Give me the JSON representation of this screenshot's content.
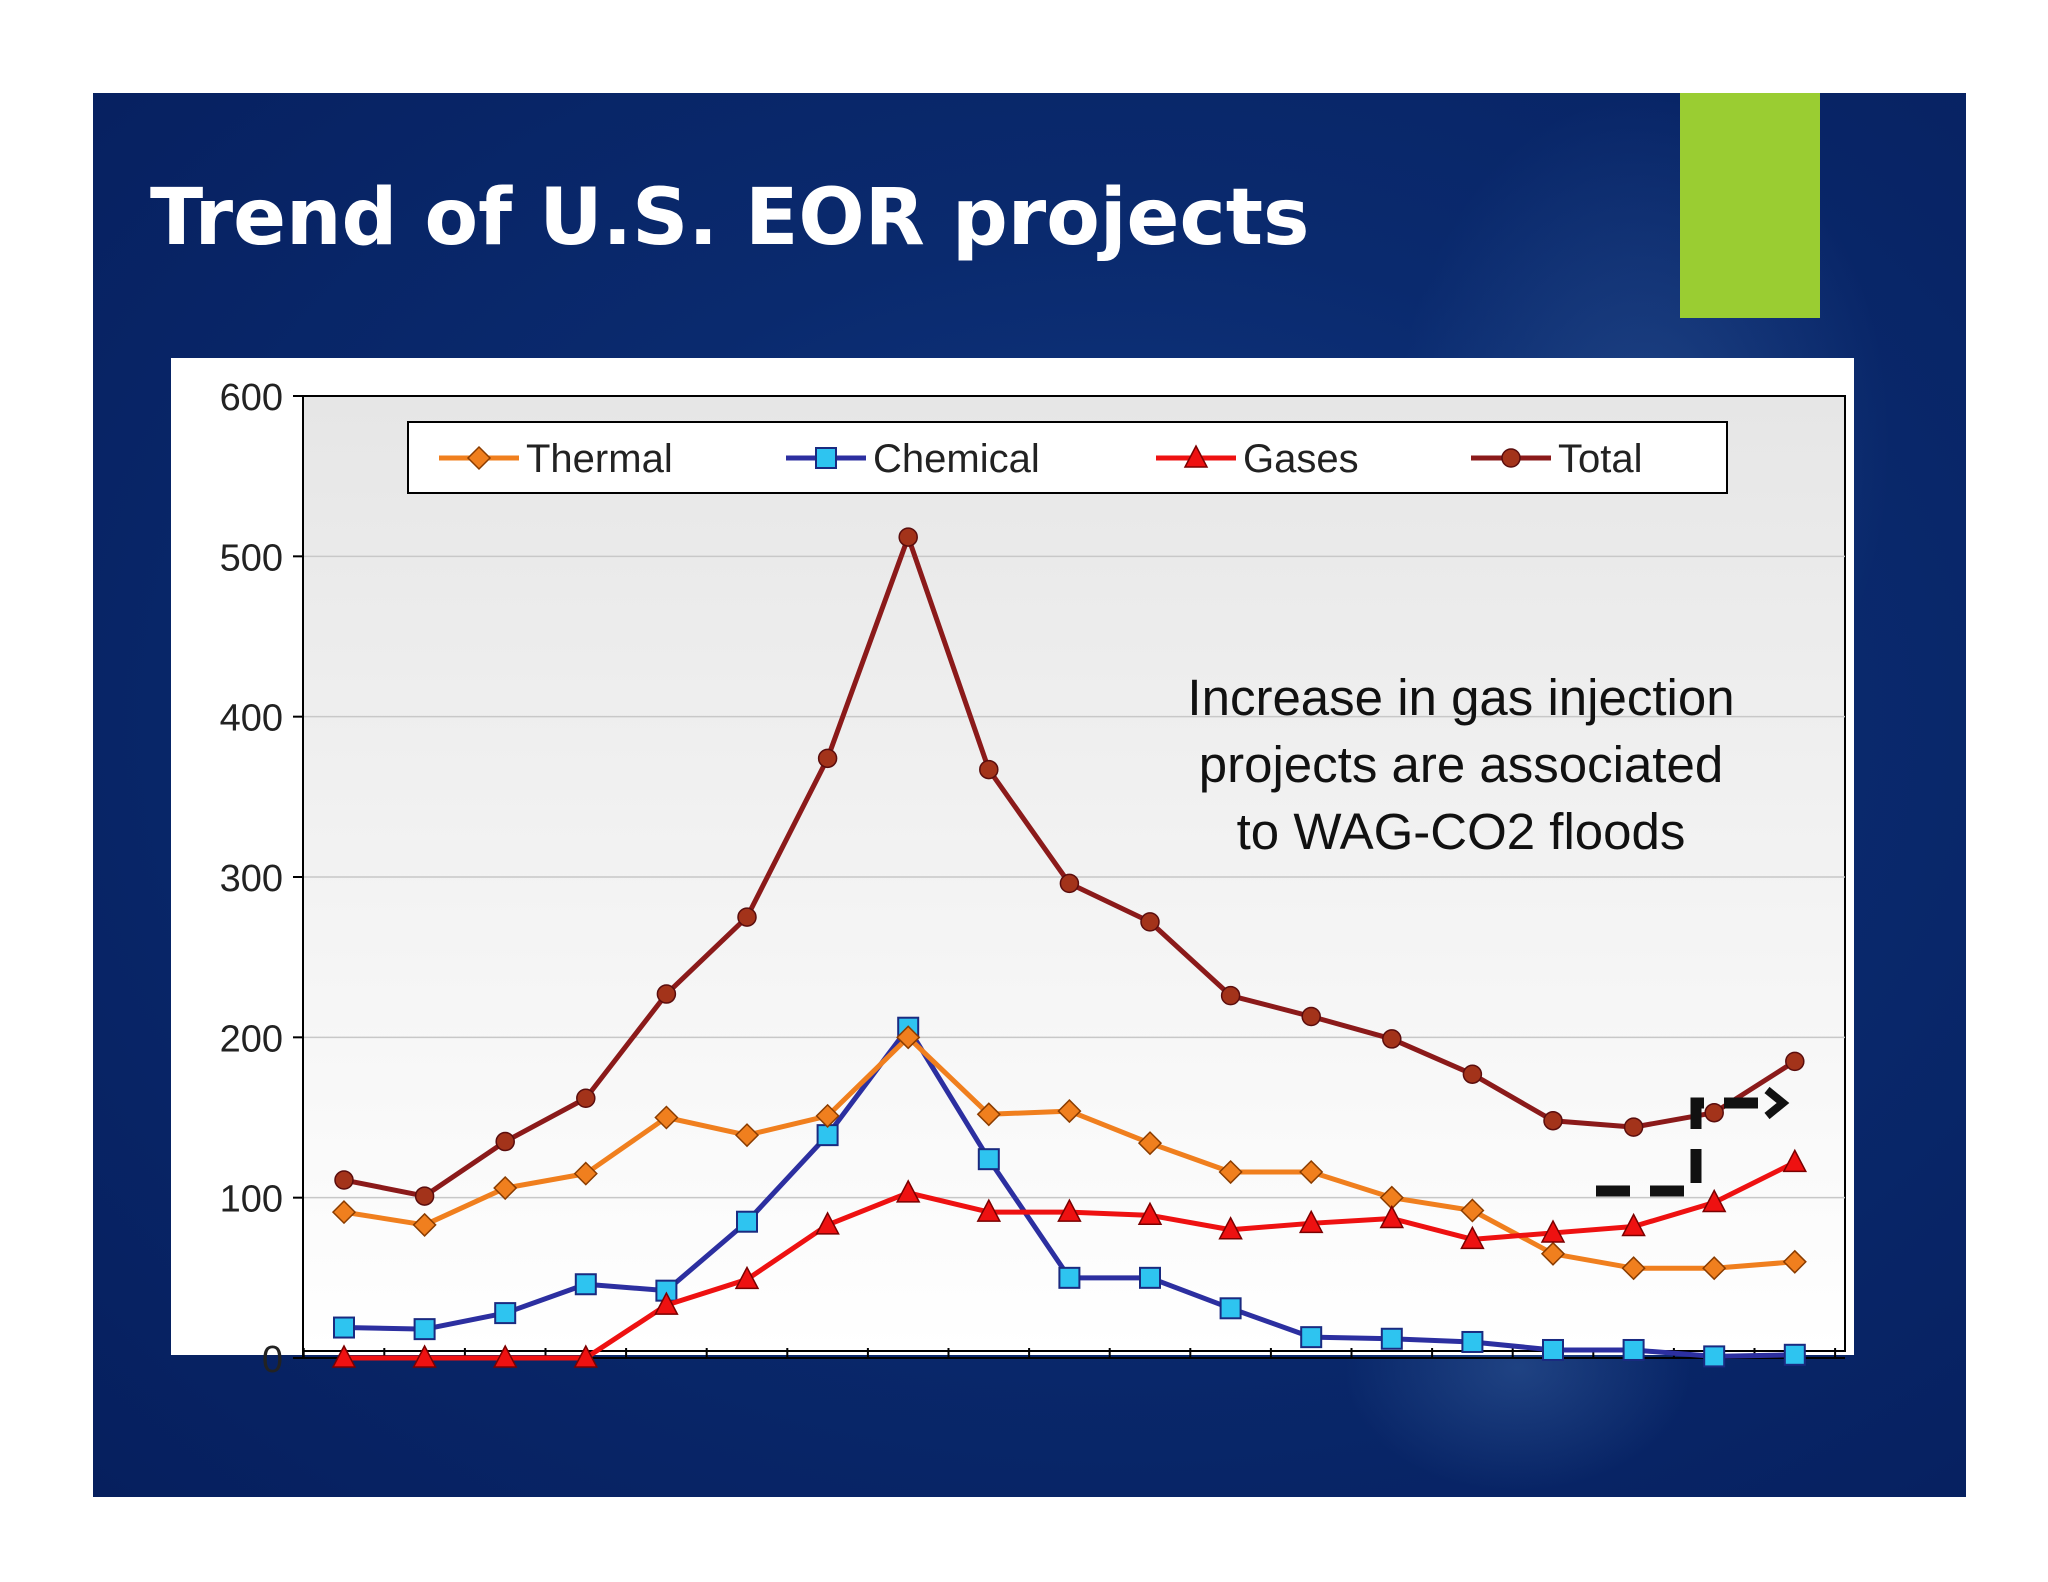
{
  "slide": {
    "title": "Trend of U.S. EOR projects",
    "accent_color": "#9acd32",
    "background_color": "#0a2a6e"
  },
  "chart_data": {
    "type": "line",
    "title": "",
    "xlabel": "",
    "ylabel": "",
    "ylim": [
      0,
      600
    ],
    "yticks": [
      0,
      100,
      200,
      300,
      400,
      500,
      600
    ],
    "grid": true,
    "legend_position": "top",
    "x_points": 19,
    "series": [
      {
        "name": "Thermal",
        "color": "#f07f1e",
        "marker": "diamond",
        "values": [
          91,
          83,
          106,
          115,
          150,
          139,
          151,
          200,
          152,
          154,
          134,
          116,
          116,
          100,
          92,
          65,
          56,
          56,
          60
        ]
      },
      {
        "name": "Chemical",
        "color": "#2c2fa0",
        "marker": "square",
        "values": [
          19,
          18,
          28,
          46,
          42,
          85,
          139,
          206,
          124,
          50,
          50,
          31,
          13,
          12,
          10,
          5,
          5,
          1,
          2
        ]
      },
      {
        "name": "Gases",
        "color": "#ee1111",
        "marker": "triangle",
        "values": [
          0,
          0,
          0,
          0,
          33,
          49,
          83,
          103,
          91,
          91,
          89,
          80,
          84,
          87,
          74,
          78,
          82,
          97,
          122
        ]
      },
      {
        "name": "Total",
        "color": "#8b1a1a",
        "marker": "circle",
        "values": [
          111,
          101,
          135,
          162,
          227,
          275,
          374,
          512,
          367,
          296,
          272,
          226,
          213,
          199,
          177,
          148,
          144,
          153,
          185
        ]
      }
    ],
    "annotation": {
      "lines": [
        "Increase in gas injection",
        "projects are associated",
        "to WAG-CO2 floods"
      ]
    }
  }
}
